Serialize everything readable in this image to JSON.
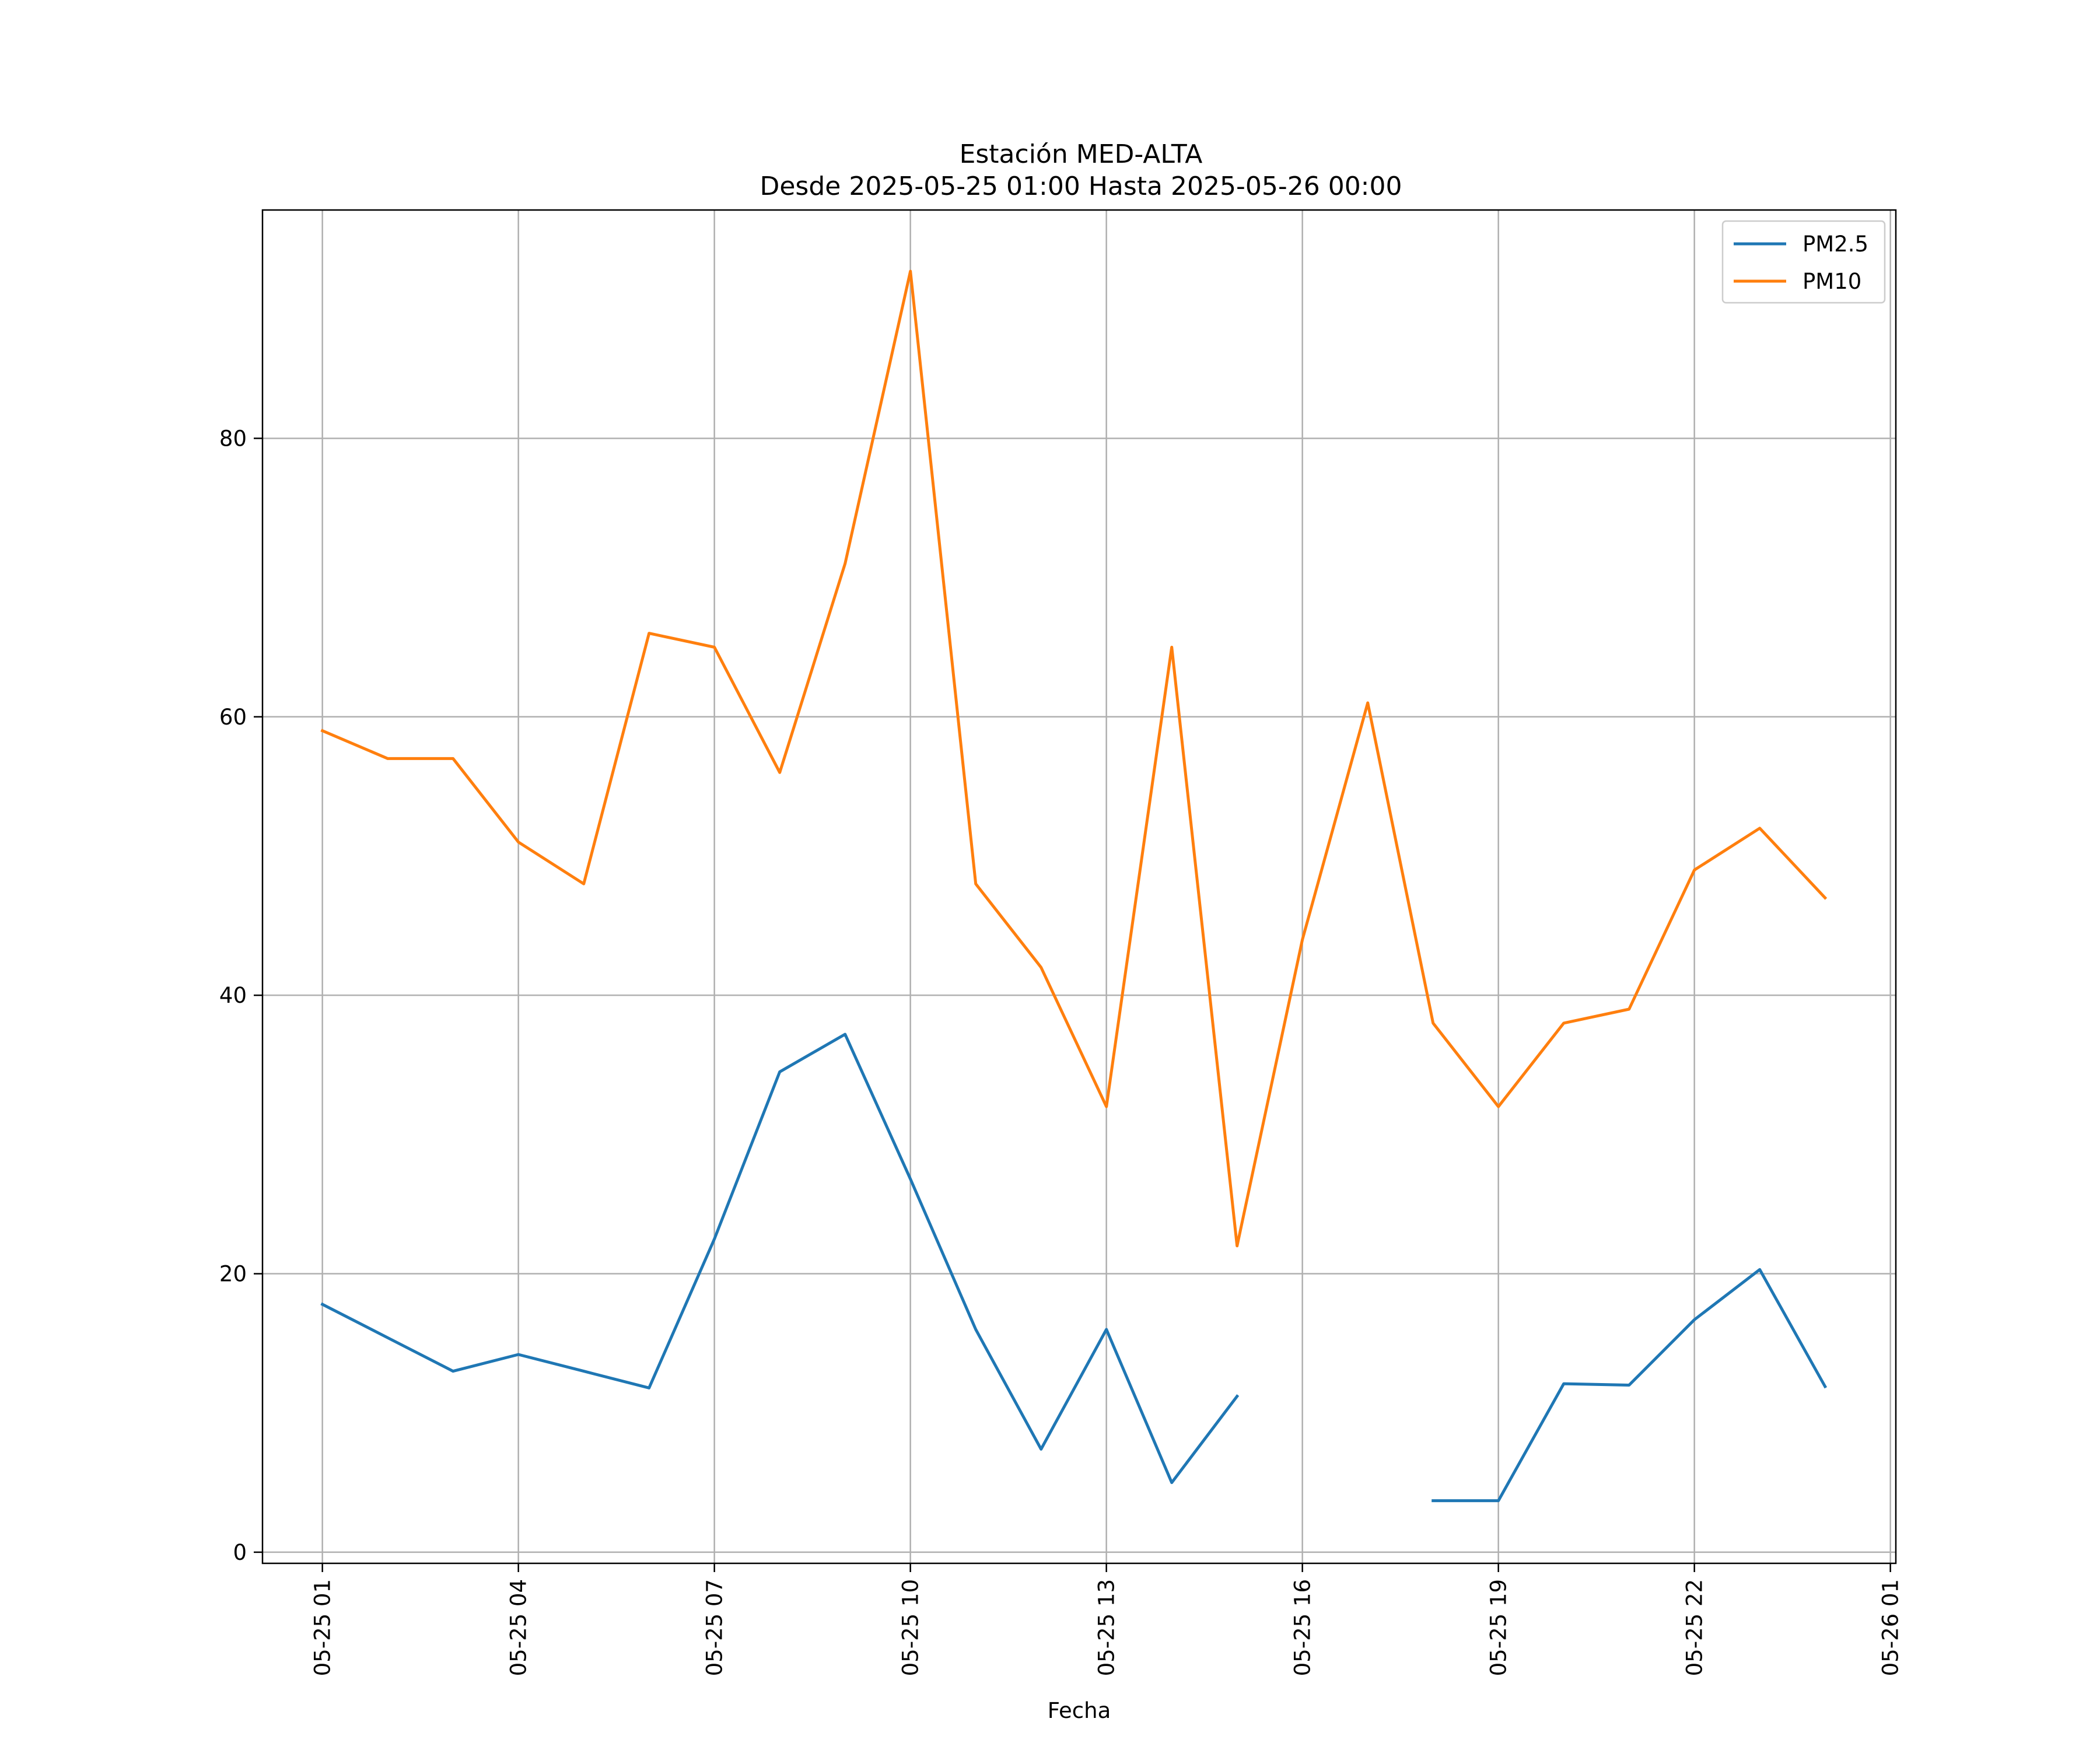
{
  "chart_data": {
    "type": "line",
    "title": "Estación MED-ALTA",
    "subtitle": "Desde 2025-05-25 01:00 Hasta 2025-05-26 00:00",
    "xlabel": "Fecha",
    "ylabel": "",
    "x": [
      "2025-05-25 01:00",
      "2025-05-25 02:00",
      "2025-05-25 03:00",
      "2025-05-25 04:00",
      "2025-05-25 05:00",
      "2025-05-25 06:00",
      "2025-05-25 07:00",
      "2025-05-25 08:00",
      "2025-05-25 09:00",
      "2025-05-25 10:00",
      "2025-05-25 11:00",
      "2025-05-25 12:00",
      "2025-05-25 13:00",
      "2025-05-25 14:00",
      "2025-05-25 15:00",
      "2025-05-25 16:00",
      "2025-05-25 17:00",
      "2025-05-25 18:00",
      "2025-05-25 19:00",
      "2025-05-25 20:00",
      "2025-05-25 21:00",
      "2025-05-25 22:00",
      "2025-05-25 23:00",
      "2025-05-26 00:00"
    ],
    "x_ticks": [
      "2025-05-25 01:00",
      "2025-05-25 04:00",
      "2025-05-25 07:00",
      "2025-05-25 10:00",
      "2025-05-25 13:00",
      "2025-05-25 16:00",
      "2025-05-25 19:00",
      "2025-05-25 22:00",
      "2025-05-26 01:00"
    ],
    "x_tick_labels": [
      "05-25 01",
      "05-25 04",
      "05-25 07",
      "05-25 10",
      "05-25 13",
      "05-25 16",
      "05-25 19",
      "05-25 22",
      "05-26 01"
    ],
    "xlim": [
      "2025-05-25 00:05",
      "2025-05-26 01:05"
    ],
    "ylim": [
      -0.8,
      96.4
    ],
    "y_ticks": [
      0,
      20,
      40,
      60,
      80
    ],
    "y_tick_labels": [
      "0",
      "20",
      "40",
      "60",
      "80"
    ],
    "grid": true,
    "legend": "top-right",
    "series": [
      {
        "name": "PM2.5",
        "color": "#1f77b4",
        "values": [
          17.8,
          15.4,
          13.0,
          14.2,
          13.0,
          11.8,
          22.5,
          34.5,
          37.2,
          26.8,
          16.0,
          7.4,
          16.0,
          5.0,
          11.2,
          null,
          null,
          3.7,
          3.7,
          12.1,
          12.0,
          16.7,
          20.3,
          11.9
        ]
      },
      {
        "name": "PM10",
        "color": "#ff7f0e",
        "values": [
          59,
          57,
          57,
          51,
          48,
          66,
          65,
          56,
          71,
          92,
          48,
          42,
          32,
          65,
          22,
          44,
          61,
          38,
          32,
          38,
          39,
          49,
          52,
          47
        ]
      }
    ]
  }
}
